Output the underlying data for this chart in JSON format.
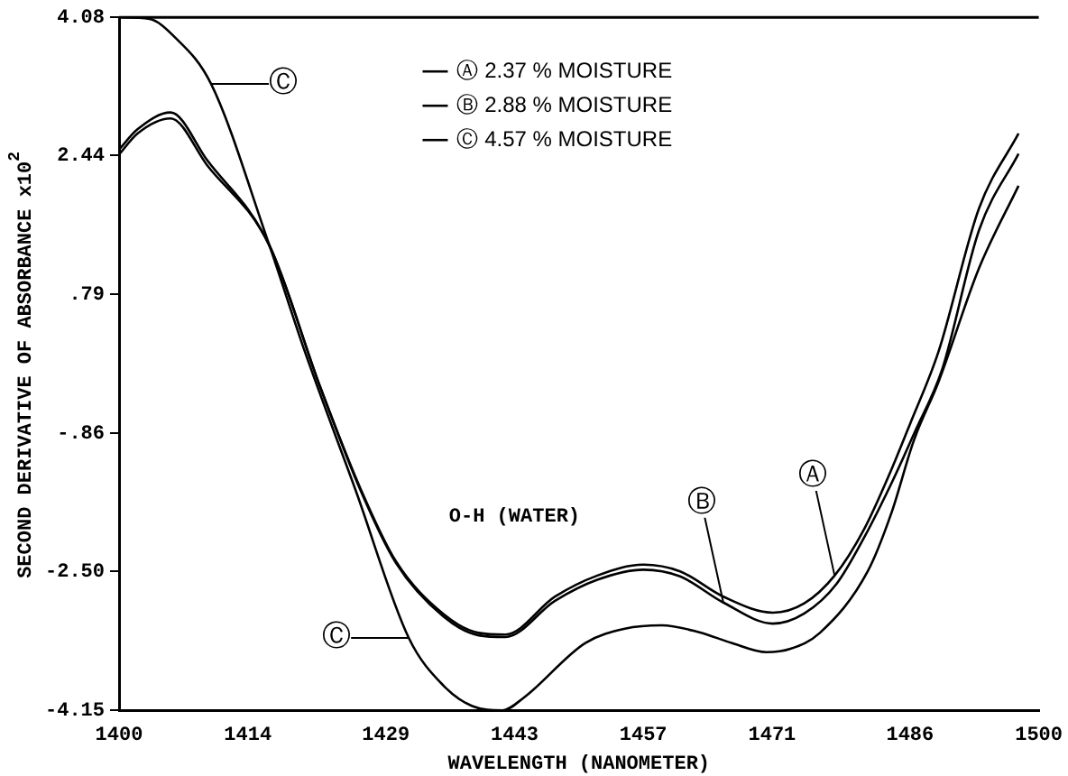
{
  "chart_data": {
    "type": "line",
    "xlabel": "WAVELENGTH (NANOMETER)",
    "ylabel": "SECOND DERIVATIVE OF ABSORBANCE x10$^{2}$",
    "xlim": [
      1400,
      1500
    ],
    "ylim": [
      -4.15,
      4.08
    ],
    "xticks": [
      1400,
      1414,
      1429,
      1443,
      1457,
      1471,
      1486,
      1500
    ],
    "yticks": [
      4.08,
      2.44,
      {
        "value": 0.79,
        "label": ".79"
      },
      {
        "value": -0.86,
        "label": "-.86"
      },
      {
        "value": -2.5,
        "label": "-2.50"
      },
      -4.15
    ],
    "grid": false,
    "legend": "top",
    "marker": "none",
    "line_style": "solid",
    "series": [
      {
        "name": "Ⓐ 2.37 % MOISTURE",
        "color": "#000000",
        "x": [
          1400,
          1402,
          1405.6,
          1409.6,
          1416.3,
          1421.9,
          1426.3,
          1430.1,
          1435.3,
          1439.1,
          1442,
          1447.4,
          1452,
          1457,
          1461,
          1465.7,
          1471.1,
          1474.5,
          1477.8,
          1481,
          1483.9,
          1486,
          1489.1,
          1493.5,
          1497.8
        ],
        "values": [
          2.51,
          2.75,
          2.95,
          2.38,
          1.38,
          -0.32,
          -1.53,
          -2.38,
          -3.01,
          -3.23,
          -3.25,
          -2.8,
          -2.55,
          -2.42,
          -2.5,
          -2.8,
          -2.99,
          -2.88,
          -2.55,
          -2.0,
          -1.31,
          -0.75,
          0.11,
          1.81,
          2.7
        ]
      },
      {
        "name": "Ⓑ 2.88 % MOISTURE",
        "color": "#000000",
        "x": [
          1400,
          1402,
          1405.6,
          1409.6,
          1416.3,
          1421.9,
          1426.3,
          1430.1,
          1435.3,
          1439.1,
          1442,
          1447.4,
          1452,
          1457,
          1461,
          1465.7,
          1471.1,
          1474.5,
          1478,
          1481,
          1484,
          1486.5,
          1489.5,
          1493.5,
          1497.8
        ],
        "values": [
          2.45,
          2.7,
          2.88,
          2.32,
          1.38,
          -0.32,
          -1.55,
          -2.4,
          -3.04,
          -3.26,
          -3.28,
          -2.85,
          -2.6,
          -2.48,
          -2.56,
          -2.87,
          -3.12,
          -3.0,
          -2.65,
          -2.1,
          -1.45,
          -0.85,
          -0.1,
          1.55,
          2.46
        ]
      },
      {
        "name": "Ⓒ 4.57 % MOISTURE",
        "color": "#000000",
        "x": [
          1400,
          1403.3,
          1406,
          1410,
          1416.1,
          1420.2,
          1425.7,
          1431.5,
          1435.3,
          1438.4,
          1441.7,
          1444,
          1450.7,
          1455,
          1459,
          1463,
          1466.6,
          1470.4,
          1473,
          1476.2,
          1481.4,
          1484,
          1486.4,
          1489.1,
          1493.5,
          1497.8
        ],
        "values": [
          4.08,
          4.06,
          3.85,
          3.29,
          1.45,
          0.11,
          -1.53,
          -3.29,
          -3.86,
          -4.1,
          -4.15,
          -4.0,
          -3.35,
          -3.18,
          -3.14,
          -3.22,
          -3.35,
          -3.46,
          -3.42,
          -3.23,
          -2.5,
          -1.8,
          -0.95,
          -0.25,
          1.1,
          2.08
        ]
      }
    ],
    "annotations": [
      "O-H (WATER)",
      {
        "text": "Ⓒ",
        "x": 1410,
        "y": 3.29
      },
      {
        "text": "Ⓒ",
        "x": 1431.5,
        "y": -3.29
      },
      {
        "text": "Ⓑ",
        "x": 1465.7,
        "y": -2.87
      },
      {
        "text": "Ⓐ",
        "x": 1477.8,
        "y": -2.55
      }
    ]
  }
}
